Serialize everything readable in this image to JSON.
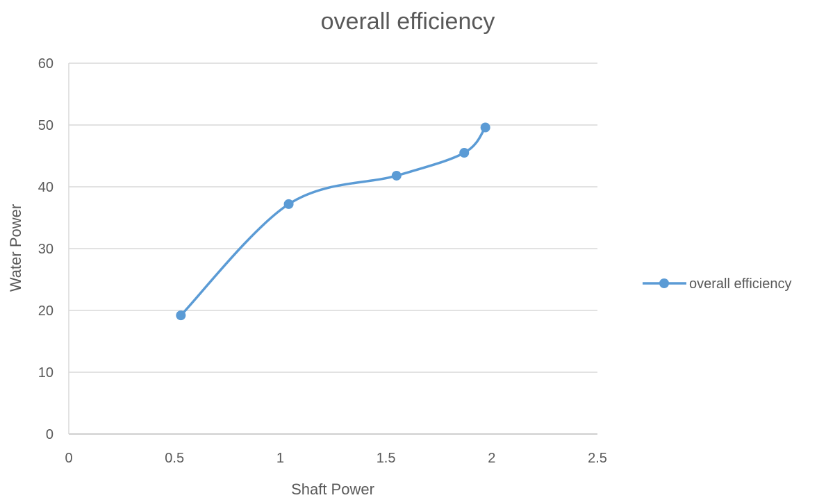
{
  "chart_data": {
    "type": "scatter",
    "title": "overall efficiency",
    "xlabel": "Shaft Power",
    "ylabel": "Water Power",
    "xlim": [
      0,
      2.5
    ],
    "ylim": [
      0,
      60
    ],
    "xticks": [
      "0",
      "0.5",
      "1",
      "1.5",
      "2",
      "2.5"
    ],
    "yticks": [
      "0",
      "10",
      "20",
      "30",
      "40",
      "50",
      "60"
    ],
    "grid": true,
    "legend": "right",
    "smooth": true,
    "series": [
      {
        "name": "overall efficiency",
        "color": "#5b9bd5",
        "x": [
          0.53,
          1.04,
          1.55,
          1.87,
          1.97
        ],
        "y": [
          19.2,
          37.2,
          41.8,
          45.5,
          49.6
        ]
      }
    ]
  }
}
